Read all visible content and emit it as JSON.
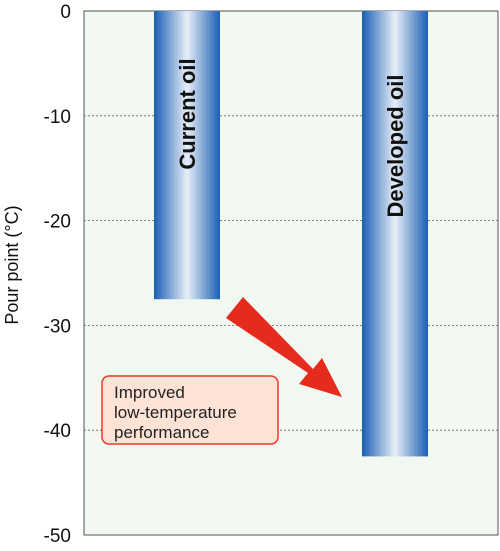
{
  "chart_data": {
    "type": "bar",
    "categories": [
      "Current oil",
      "Developed oil"
    ],
    "values": [
      -27.5,
      -42.5
    ],
    "ylabel": "Pour point (°C)",
    "ylim": [
      -50,
      0
    ],
    "yticks": [
      "0",
      "-10",
      "-20",
      "-30",
      "-40",
      "-50"
    ],
    "grid": true,
    "annotation": {
      "lines": [
        "Improved",
        "low-temperature",
        "performance"
      ]
    },
    "colors": {
      "plot_background": "#f1f8f1",
      "bar_edge": "#1a5fb4",
      "bar_center": "#e8eef8",
      "arrow": "#e52b1e",
      "note_fill": "#fde3d6",
      "note_border": "#e53e2a"
    }
  }
}
